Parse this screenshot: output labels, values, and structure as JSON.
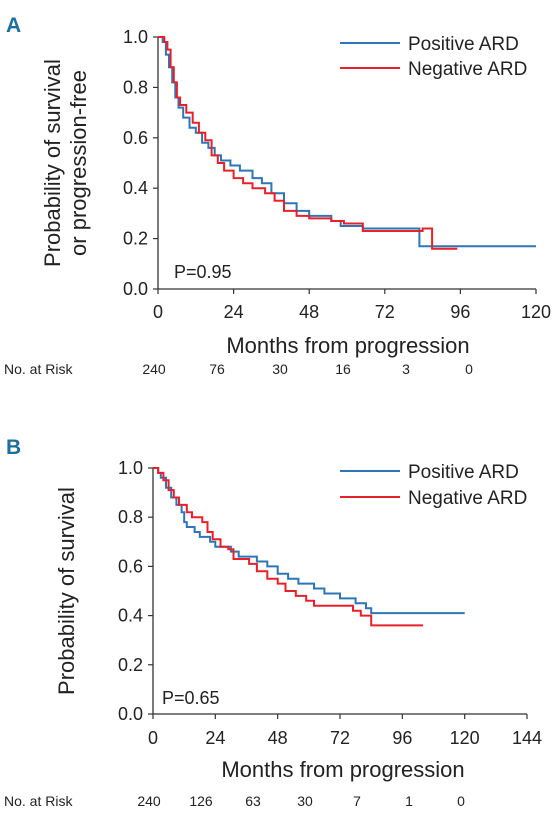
{
  "chart_data": [
    {
      "type": "line",
      "panel": "A",
      "xlabel": "Months from progression",
      "ylabel": [
        "Probability of survival",
        "or progression-free"
      ],
      "xlim": [
        0,
        120
      ],
      "ylim": [
        0,
        1
      ],
      "xticks": [
        "0",
        "24",
        "48",
        "72",
        "96",
        "120"
      ],
      "yticks": [
        "0.0",
        "0.2",
        "0.4",
        "0.6",
        "0.8",
        "1.0"
      ],
      "legend_position": "top-right",
      "grid": false,
      "annotation": "P=0.95",
      "risk_label": "No. at Risk",
      "risk_values": [
        "240",
        "76",
        "30",
        "16",
        "3",
        "0"
      ],
      "series": [
        {
          "name": "Positive ARD",
          "color": "#2e75b6",
          "points": [
            [
              0,
              1.0
            ],
            [
              1.5,
              0.98
            ],
            [
              2.5,
              0.93
            ],
            [
              3.5,
              0.88
            ],
            [
              4.5,
              0.82
            ],
            [
              5.5,
              0.76
            ],
            [
              6.5,
              0.72
            ],
            [
              8,
              0.68
            ],
            [
              10,
              0.64
            ],
            [
              12,
              0.62
            ],
            [
              14,
              0.58
            ],
            [
              16,
              0.56
            ],
            [
              18,
              0.53
            ],
            [
              20,
              0.51
            ],
            [
              23,
              0.49
            ],
            [
              26,
              0.47
            ],
            [
              30,
              0.44
            ],
            [
              33,
              0.42
            ],
            [
              36,
              0.38
            ],
            [
              40,
              0.34
            ],
            [
              44,
              0.31
            ],
            [
              48,
              0.29
            ],
            [
              55,
              0.27
            ],
            [
              58,
              0.25
            ],
            [
              65,
              0.24
            ],
            [
              80,
              0.24
            ],
            [
              83,
              0.17
            ],
            [
              120,
              0.17
            ]
          ]
        },
        {
          "name": "Negative ARD",
          "color": "#e8202a",
          "points": [
            [
              0,
              1.0
            ],
            [
              2,
              0.98
            ],
            [
              3,
              0.95
            ],
            [
              4,
              0.88
            ],
            [
              5,
              0.82
            ],
            [
              6,
              0.76
            ],
            [
              7,
              0.73
            ],
            [
              9,
              0.7
            ],
            [
              11,
              0.66
            ],
            [
              13,
              0.62
            ],
            [
              15,
              0.59
            ],
            [
              17,
              0.53
            ],
            [
              19,
              0.5
            ],
            [
              21,
              0.47
            ],
            [
              24,
              0.44
            ],
            [
              27,
              0.42
            ],
            [
              30,
              0.4
            ],
            [
              34,
              0.38
            ],
            [
              37,
              0.35
            ],
            [
              40,
              0.31
            ],
            [
              44,
              0.29
            ],
            [
              48,
              0.28
            ],
            [
              55,
              0.27
            ],
            [
              59,
              0.26
            ],
            [
              65,
              0.23
            ],
            [
              80,
              0.23
            ],
            [
              84,
              0.24
            ],
            [
              87,
              0.16
            ],
            [
              95,
              0.16
            ]
          ]
        }
      ]
    },
    {
      "type": "line",
      "panel": "B",
      "xlabel": "Months from progression",
      "ylabel": [
        "Probability of survival"
      ],
      "xlim": [
        0,
        144
      ],
      "ylim": [
        0,
        1
      ],
      "xticks": [
        "0",
        "24",
        "48",
        "72",
        "96",
        "120",
        "144"
      ],
      "yticks": [
        "0.0",
        "0.2",
        "0.4",
        "0.6",
        "0.8",
        "1.0"
      ],
      "legend_position": "top-right",
      "grid": false,
      "annotation": "P=0.65",
      "risk_label": "No. at Risk",
      "risk_values": [
        "240",
        "126",
        "63",
        "30",
        "7",
        "1",
        "0"
      ],
      "series": [
        {
          "name": "Positive ARD",
          "color": "#2e75b6",
          "points": [
            [
              0,
              1.0
            ],
            [
              2,
              0.98
            ],
            [
              3,
              0.96
            ],
            [
              5,
              0.92
            ],
            [
              7,
              0.88
            ],
            [
              9,
              0.85
            ],
            [
              11,
              0.82
            ],
            [
              12,
              0.78
            ],
            [
              13,
              0.76
            ],
            [
              16,
              0.74
            ],
            [
              18,
              0.72
            ],
            [
              22,
              0.7
            ],
            [
              24,
              0.68
            ],
            [
              30,
              0.66
            ],
            [
              33,
              0.64
            ],
            [
              40,
              0.62
            ],
            [
              44,
              0.6
            ],
            [
              48,
              0.57
            ],
            [
              52,
              0.55
            ],
            [
              56,
              0.53
            ],
            [
              62,
              0.51
            ],
            [
              66,
              0.49
            ],
            [
              72,
              0.47
            ],
            [
              78,
              0.45
            ],
            [
              82,
              0.43
            ],
            [
              84,
              0.41
            ],
            [
              120,
              0.41
            ]
          ]
        },
        {
          "name": "Negative ARD",
          "color": "#e8202a",
          "points": [
            [
              0,
              1.0
            ],
            [
              2,
              0.98
            ],
            [
              4,
              0.95
            ],
            [
              6,
              0.91
            ],
            [
              8,
              0.88
            ],
            [
              10,
              0.85
            ],
            [
              13,
              0.82
            ],
            [
              15,
              0.8
            ],
            [
              19,
              0.78
            ],
            [
              21,
              0.74
            ],
            [
              23,
              0.71
            ],
            [
              26,
              0.68
            ],
            [
              29,
              0.67
            ],
            [
              31,
              0.63
            ],
            [
              37,
              0.61
            ],
            [
              40,
              0.58
            ],
            [
              44,
              0.55
            ],
            [
              48,
              0.53
            ],
            [
              51,
              0.5
            ],
            [
              55,
              0.48
            ],
            [
              59,
              0.46
            ],
            [
              62,
              0.44
            ],
            [
              72,
              0.44
            ],
            [
              77,
              0.42
            ],
            [
              80,
              0.4
            ],
            [
              84,
              0.36
            ],
            [
              104,
              0.36
            ]
          ]
        }
      ]
    }
  ]
}
